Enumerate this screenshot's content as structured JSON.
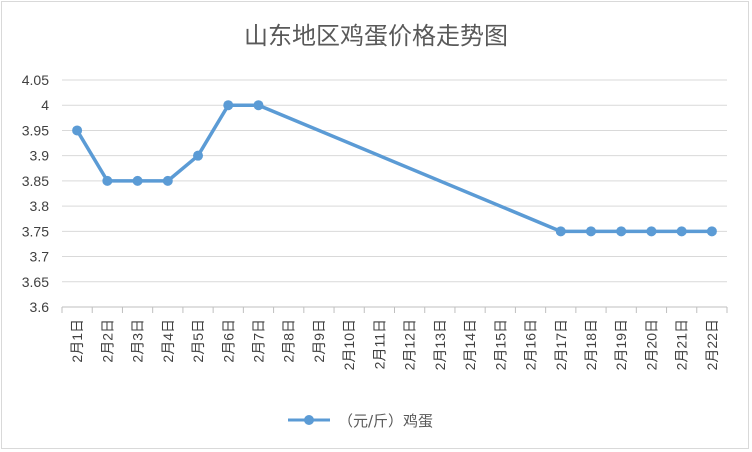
{
  "chart_data": {
    "type": "line",
    "title": "山东地区鸡蛋价格走势图",
    "xlabel": "",
    "ylabel": "",
    "categories": [
      "2月1日",
      "2月2日",
      "2月3日",
      "2月4日",
      "2月5日",
      "2月6日",
      "2月7日",
      "2月8日",
      "2月9日",
      "2月10日",
      "2月11日",
      "2月12日",
      "2月13日",
      "2月14日",
      "2月15日",
      "2月16日",
      "2月17日",
      "2月18日",
      "2月19日",
      "2月20日",
      "2月21日",
      "2月22日"
    ],
    "series": [
      {
        "name": "（元/斤）鸡蛋",
        "values": [
          3.95,
          3.85,
          3.85,
          3.85,
          3.9,
          4,
          4,
          null,
          null,
          null,
          null,
          null,
          null,
          null,
          null,
          null,
          3.75,
          3.75,
          3.75,
          3.75,
          3.75,
          3.75
        ],
        "color": "#5b9bd5"
      }
    ],
    "ylim": [
      3.6,
      4.05
    ],
    "yticks": [
      "3.6",
      "3.65",
      "3.7",
      "3.75",
      "3.8",
      "3.85",
      "3.9",
      "3.95",
      "4",
      "4.05"
    ],
    "grid": true,
    "legend_position": "bottom"
  }
}
